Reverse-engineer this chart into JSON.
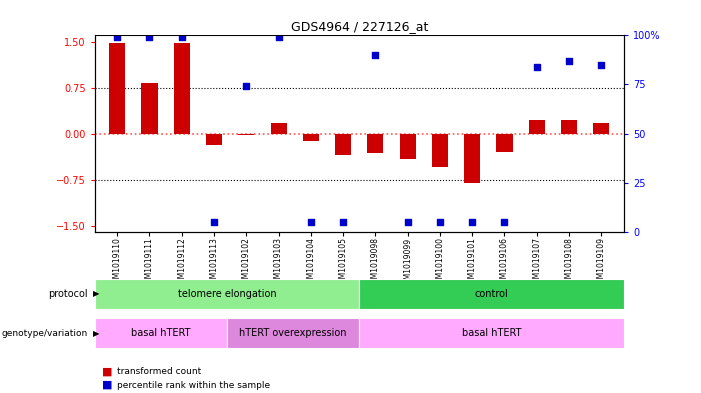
{
  "title": "GDS4964 / 227126_at",
  "samples": [
    "GSM1019110",
    "GSM1019111",
    "GSM1019112",
    "GSM1019113",
    "GSM1019102",
    "GSM1019103",
    "GSM1019104",
    "GSM1019105",
    "GSM1019098",
    "GSM1019099",
    "GSM1019100",
    "GSM1019101",
    "GSM1019106",
    "GSM1019107",
    "GSM1019108",
    "GSM1019109"
  ],
  "transformed_count": [
    1.48,
    0.82,
    1.47,
    -0.18,
    -0.03,
    0.18,
    -0.12,
    -0.35,
    -0.32,
    -0.42,
    -0.55,
    -0.8,
    -0.3,
    0.22,
    0.22,
    0.18
  ],
  "percentile_rank": [
    99,
    99,
    99,
    5,
    74,
    99,
    5,
    5,
    90,
    5,
    5,
    5,
    5,
    84,
    87,
    85
  ],
  "ylim": [
    -1.6,
    1.6
  ],
  "yticks_left": [
    -1.5,
    -0.75,
    0,
    0.75,
    1.5
  ],
  "yticks_right": [
    0,
    25,
    50,
    75,
    100
  ],
  "dotted_lines": [
    -0.75,
    0.75
  ],
  "protocol_groups": [
    {
      "label": "telomere elongation",
      "start": 0,
      "end": 7,
      "color": "#90EE90"
    },
    {
      "label": "control",
      "start": 8,
      "end": 15,
      "color": "#33CC55"
    }
  ],
  "genotype_groups": [
    {
      "label": "basal hTERT",
      "start": 0,
      "end": 3,
      "color": "#FFAAFF"
    },
    {
      "label": "hTERT overexpression",
      "start": 4,
      "end": 7,
      "color": "#DD88DD"
    },
    {
      "label": "basal hTERT",
      "start": 8,
      "end": 15,
      "color": "#FFAAFF"
    }
  ],
  "bar_color": "#CC0000",
  "percentile_color": "#0000CC",
  "zero_line_color": "#FF5555",
  "bg_color": "#FFFFFF"
}
